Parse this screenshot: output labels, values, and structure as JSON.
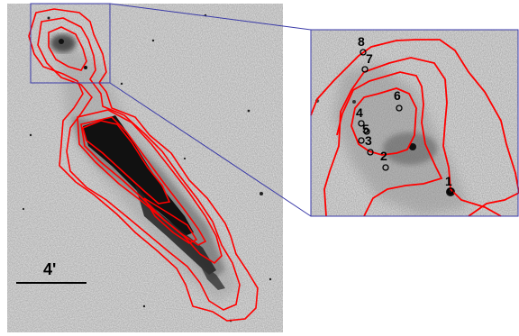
{
  "scale_bar": {
    "label": "4'"
  },
  "inset": {
    "markers": [
      {
        "id": "1",
        "label": "1"
      },
      {
        "id": "2",
        "label": "2"
      },
      {
        "id": "3",
        "label": "3"
      },
      {
        "id": "4",
        "label": "4"
      },
      {
        "id": "5",
        "label": "5"
      },
      {
        "id": "6",
        "label": "6"
      },
      {
        "id": "7",
        "label": "7"
      },
      {
        "id": "8",
        "label": "8"
      }
    ]
  },
  "colors": {
    "contour": "#ff0000",
    "zoom_box": "#3a3aa8",
    "background": "#e7e7e7",
    "galaxy": "#111111"
  }
}
